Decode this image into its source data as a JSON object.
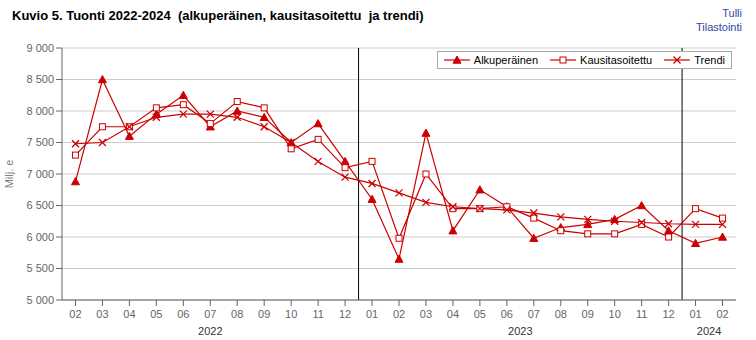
{
  "chart_data": {
    "type": "line",
    "title": "Kuvio 5. Tuonti 2022-2024  (alkuperäinen, kausitasoitettu  ja trendi)",
    "ylabel": "Milj. e",
    "annotations": [
      "Tulli",
      "Tilastointi"
    ],
    "x_group_labels": [
      "2022",
      "2023",
      "2024"
    ],
    "categories": [
      "02",
      "03",
      "04",
      "05",
      "06",
      "07",
      "08",
      "09",
      "10",
      "11",
      "12",
      "01",
      "02",
      "03",
      "04",
      "05",
      "06",
      "07",
      "08",
      "09",
      "10",
      "11",
      "12",
      "01",
      "02"
    ],
    "series": [
      {
        "name": "Alkuperäinen",
        "color": "#cc0000",
        "marker": "triangle",
        "line_style": "solid",
        "values": [
          6880,
          8500,
          7600,
          7950,
          8250,
          7750,
          8000,
          7900,
          7500,
          7800,
          7200,
          6600,
          5650,
          7650,
          6100,
          6750,
          6480,
          5980,
          6150,
          6200,
          6280,
          6500,
          6100,
          5900,
          6000
        ]
      },
      {
        "name": "Kausitasoitettu",
        "color": "#cc0000",
        "marker": "square",
        "line_style": "solid",
        "values": [
          7300,
          7750,
          7750,
          8050,
          8100,
          7800,
          8150,
          8050,
          7400,
          7550,
          7100,
          7200,
          5980,
          7000,
          6450,
          6450,
          6480,
          6300,
          6100,
          6050,
          6050,
          6200,
          6000,
          6450,
          6300
        ]
      },
      {
        "name": "Trendi",
        "color": "#cc0000",
        "marker": "x",
        "line_style": "solid",
        "values": [
          7480,
          7500,
          7750,
          7900,
          7950,
          7950,
          7900,
          7750,
          7500,
          7200,
          6950,
          6850,
          6700,
          6550,
          6480,
          6450,
          6430,
          6380,
          6320,
          6280,
          6250,
          6230,
          6210,
          6200,
          6200
        ]
      }
    ],
    "ylim": [
      5000,
      9000
    ],
    "yticks": [
      {
        "value": 5000,
        "label": "5 000"
      },
      {
        "value": 5500,
        "label": "5 500"
      },
      {
        "value": 6000,
        "label": "6 000"
      },
      {
        "value": 6500,
        "label": "6 500"
      },
      {
        "value": 7000,
        "label": "7 000"
      },
      {
        "value": 7500,
        "label": "7 500"
      },
      {
        "value": 8000,
        "label": "8 000"
      },
      {
        "value": 8500,
        "label": "8 500"
      },
      {
        "value": 9000,
        "label": "9 000"
      }
    ],
    "grid": true,
    "legend": "upper right"
  }
}
